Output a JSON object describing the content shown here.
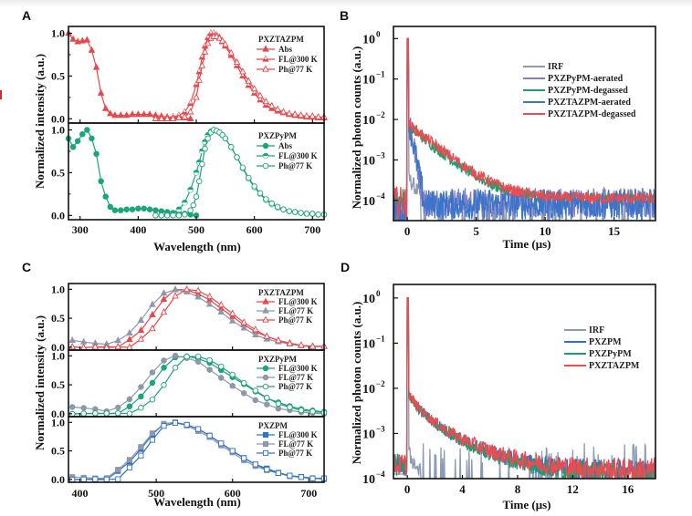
{
  "figure": {
    "panel_labels": [
      "A",
      "B",
      "C",
      "D"
    ]
  },
  "chart_data": [
    {
      "panel": "A",
      "type": "line",
      "xlabel": "Wavelength (nm)",
      "ylabel": "Normalized intensity (a.u.)",
      "xlim": [
        280,
        720
      ],
      "xticks": [
        300,
        400,
        500,
        600,
        700
      ],
      "subplots": [
        {
          "title": "PXZTAZPM",
          "ylim": [
            -0.05,
            1.08
          ],
          "yticks": [
            "0.0",
            "0.5",
            "1.0"
          ],
          "color": "#e8474b",
          "series": [
            {
              "name": "Abs",
              "marker": "triangle-filled",
              "x": [
                280,
                288,
                296,
                304,
                312,
                320,
                328,
                336,
                344,
                352,
                360,
                370,
                380,
                390,
                400,
                410,
                420,
                430,
                440,
                450,
                460,
                470,
                480,
                490
              ],
              "y": [
                1.0,
                0.93,
                0.9,
                0.91,
                0.92,
                0.8,
                0.6,
                0.3,
                0.12,
                0.06,
                0.04,
                0.04,
                0.04,
                0.05,
                0.05,
                0.05,
                0.05,
                0.04,
                0.03,
                0.02,
                0.02,
                0.02,
                0.01,
                0.0
              ]
            },
            {
              "name": "FL@300 K",
              "marker": "triangle-half",
              "x": [
                430,
                440,
                450,
                460,
                470,
                480,
                490,
                500,
                505,
                510,
                515,
                520,
                525,
                530,
                535,
                540,
                545,
                550,
                560,
                570,
                580,
                590,
                600,
                610,
                620,
                630,
                640,
                650,
                660,
                670,
                680,
                690,
                700,
                710,
                720
              ],
              "y": [
                0.0,
                0.0,
                0.01,
                0.02,
                0.04,
                0.08,
                0.18,
                0.4,
                0.55,
                0.72,
                0.85,
                0.95,
                1.0,
                1.0,
                0.98,
                0.95,
                0.9,
                0.85,
                0.74,
                0.62,
                0.5,
                0.39,
                0.3,
                0.22,
                0.16,
                0.12,
                0.09,
                0.07,
                0.05,
                0.04,
                0.03,
                0.02,
                0.02,
                0.01,
                0.01
              ]
            },
            {
              "name": "Ph@77 K",
              "marker": "triangle-open",
              "x": [
                430,
                440,
                450,
                460,
                470,
                480,
                490,
                500,
                505,
                510,
                515,
                520,
                525,
                530,
                535,
                540,
                545,
                550,
                560,
                570,
                580,
                590,
                600,
                610,
                620,
                630,
                640,
                650,
                660,
                670,
                680,
                690,
                700,
                710,
                720
              ],
              "y": [
                0.0,
                0.0,
                0.0,
                0.0,
                0.01,
                0.02,
                0.08,
                0.25,
                0.45,
                0.62,
                0.78,
                0.88,
                0.94,
                0.96,
                0.96,
                0.94,
                0.91,
                0.87,
                0.77,
                0.66,
                0.55,
                0.44,
                0.35,
                0.27,
                0.2,
                0.15,
                0.11,
                0.08,
                0.06,
                0.05,
                0.04,
                0.03,
                0.03,
                0.02,
                0.02
              ]
            }
          ]
        },
        {
          "title": "PXZPyPM",
          "ylim": [
            -0.05,
            1.08
          ],
          "yticks": [
            "0.0",
            "0.5",
            "1.0"
          ],
          "color": "#1aa57a",
          "series": [
            {
              "name": "Abs",
              "marker": "circle-filled",
              "x": [
                280,
                288,
                296,
                304,
                312,
                320,
                328,
                336,
                344,
                352,
                360,
                370,
                380,
                390,
                400,
                410,
                420,
                430,
                440,
                450,
                460,
                470,
                480,
                490,
                500
              ],
              "y": [
                0.9,
                0.8,
                0.87,
                0.95,
                1.0,
                0.9,
                0.72,
                0.4,
                0.22,
                0.1,
                0.06,
                0.06,
                0.07,
                0.07,
                0.08,
                0.08,
                0.07,
                0.06,
                0.05,
                0.04,
                0.03,
                0.03,
                0.02,
                0.01,
                0.0
              ]
            },
            {
              "name": "FL@300 K",
              "marker": "circle-half",
              "x": [
                430,
                440,
                450,
                460,
                470,
                480,
                490,
                500,
                505,
                510,
                515,
                520,
                525,
                530,
                535,
                540,
                545,
                550,
                560,
                570,
                580,
                590,
                600,
                610,
                620,
                630,
                640,
                650,
                660,
                670,
                680,
                690,
                700,
                710,
                720
              ],
              "y": [
                0.0,
                0.0,
                0.01,
                0.03,
                0.07,
                0.15,
                0.3,
                0.5,
                0.62,
                0.75,
                0.86,
                0.94,
                0.98,
                1.0,
                0.99,
                0.97,
                0.94,
                0.9,
                0.8,
                0.68,
                0.55,
                0.43,
                0.33,
                0.25,
                0.18,
                0.13,
                0.09,
                0.07,
                0.05,
                0.04,
                0.03,
                0.02,
                0.02,
                0.01,
                0.01
              ]
            },
            {
              "name": "Ph@77 K",
              "marker": "circle-open",
              "x": [
                430,
                440,
                450,
                460,
                470,
                480,
                490,
                495,
                500,
                505,
                510,
                515,
                520,
                525,
                530,
                535,
                540,
                545,
                550,
                560,
                570,
                580,
                590,
                600,
                610,
                620,
                630,
                640,
                650,
                660,
                670,
                680,
                690,
                700,
                710,
                720
              ],
              "y": [
                0.0,
                0.0,
                0.0,
                0.0,
                0.0,
                0.01,
                0.06,
                0.12,
                0.22,
                0.4,
                0.6,
                0.78,
                0.9,
                0.97,
                1.0,
                0.99,
                0.97,
                0.94,
                0.9,
                0.8,
                0.68,
                0.56,
                0.44,
                0.34,
                0.26,
                0.19,
                0.14,
                0.1,
                0.07,
                0.05,
                0.04,
                0.03,
                0.02,
                0.02,
                0.01,
                0.01
              ]
            }
          ]
        }
      ]
    },
    {
      "panel": "B",
      "type": "line",
      "scale": "log",
      "xlabel": "Time (μs)",
      "ylabel": "Normalized photon counts (a.u.)",
      "xlim": [
        -1,
        18
      ],
      "xticks": [
        0,
        5,
        10,
        15
      ],
      "ylim_exp": [
        -4.5,
        0.3
      ],
      "yticks": [
        {
          "base": "10",
          "exp": "0"
        },
        {
          "base": "10",
          "exp": "−1"
        },
        {
          "base": "10",
          "exp": "−2"
        },
        {
          "base": "10",
          "exp": "−3"
        },
        {
          "base": "10",
          "exp": "−4"
        }
      ],
      "series": [
        {
          "name": "IRF",
          "color": "#8b9bb4",
          "kind": "irf",
          "noise_floor_exp": -4.5
        },
        {
          "name": "PXZPyPM-aerated",
          "color": "#7f7fc9",
          "kind": "fast",
          "tau_us": 0.3,
          "floor_exp": -4.05
        },
        {
          "name": "PXZPyPM-degassed",
          "color": "#1a9e6e",
          "kind": "slow",
          "start_exp": -2.15,
          "tau_us": 1.55,
          "floor_exp": -3.95
        },
        {
          "name": "PXZTAZPM-aerated",
          "color": "#3b74c9",
          "kind": "fast",
          "tau_us": 0.3,
          "floor_exp": -4.1
        },
        {
          "name": "PXZTAZPM-degassed",
          "color": "#ef4a50",
          "kind": "slow",
          "start_exp": -2.1,
          "tau_us": 1.6,
          "floor_exp": -3.95
        }
      ]
    },
    {
      "panel": "C",
      "type": "line",
      "xlabel": "Wavelength (nm)",
      "ylabel": "Normalized intensity (a.u.)",
      "xlim": [
        385,
        720
      ],
      "xticks": [
        400,
        500,
        600,
        700
      ],
      "subplots": [
        {
          "title": "PXZTAZPM",
          "ylim": [
            -0.05,
            1.1
          ],
          "yticks": [
            "0.0",
            "0.5",
            "1.0"
          ],
          "series": [
            {
              "name": "FL@300 K",
              "color": "#e8474b",
              "marker": "triangle-filled",
              "peak": 530,
              "width_l": 32,
              "width_r": 62,
              "base": 0.0
            },
            {
              "name": "FL@77 K",
              "color": "#8d98aa",
              "marker": "triangle-filled",
              "peak": 522,
              "width_l": 34,
              "width_r": 62,
              "base": 0.12
            },
            {
              "name": "Ph@77 K",
              "color": "#e8474b",
              "marker": "triangle-open",
              "peak": 540,
              "width_l": 30,
              "width_r": 58,
              "base": 0.0
            }
          ]
        },
        {
          "title": "PXZPyPM",
          "ylim": [
            -0.05,
            1.1
          ],
          "yticks": [
            "0.0",
            "0.5",
            "1.0"
          ],
          "series": [
            {
              "name": "FL@300 K",
              "color": "#1aa57a",
              "marker": "circle-filled",
              "peak": 533,
              "width_l": 34,
              "width_r": 70,
              "base": 0.0
            },
            {
              "name": "FL@77 K",
              "color": "#8d98aa",
              "marker": "circle-filled",
              "peak": 525,
              "width_l": 36,
              "width_r": 62,
              "base": 0.12
            },
            {
              "name": "Ph@77 K",
              "color": "#1aa57a",
              "marker": "circle-open",
              "peak": 545,
              "width_l": 30,
              "width_r": 62,
              "base": 0.0
            }
          ]
        },
        {
          "title": "PXZPM",
          "ylim": [
            -0.05,
            1.1
          ],
          "yticks": [
            "0.0",
            "0.5",
            "1.0"
          ],
          "series": [
            {
              "name": "FL@300 K",
              "color": "#2e73c8",
              "marker": "square-filled",
              "peak": 520,
              "width_l": 36,
              "width_r": 68,
              "base": 0.0
            },
            {
              "name": "FL@77 K",
              "color": "#8d98aa",
              "marker": "square-filled",
              "peak": 518,
              "width_l": 36,
              "width_r": 66,
              "base": 0.05
            },
            {
              "name": "Ph@77 K",
              "color": "#2e73c8",
              "marker": "square-open",
              "peak": 522,
              "width_l": 32,
              "width_r": 66,
              "base": 0.0
            }
          ]
        }
      ]
    },
    {
      "panel": "D",
      "type": "line",
      "scale": "log",
      "xlabel": "Time (μs)",
      "ylabel": "Normalized photon counts (a.u.)",
      "xlim": [
        -1,
        18
      ],
      "xticks": [
        0,
        4,
        8,
        12,
        16
      ],
      "ylim_exp": [
        -4,
        0.3
      ],
      "yticks": [
        {
          "base": "10",
          "exp": "0"
        },
        {
          "base": "10",
          "exp": "−1"
        },
        {
          "base": "10",
          "exp": "−2"
        },
        {
          "base": "10",
          "exp": "−3"
        },
        {
          "base": "10",
          "exp": "−4"
        }
      ],
      "series": [
        {
          "name": "IRF",
          "color": "#8b9bb4",
          "kind": "irf"
        },
        {
          "name": "PXZPM",
          "color": "#2e73c8",
          "kind": "slow2",
          "start_exp": -2.0,
          "floor_exp": -3.6
        },
        {
          "name": "PXZPyPM",
          "color": "#1a9e6e",
          "kind": "slow2",
          "start_exp": -2.0,
          "floor_exp": -3.65
        },
        {
          "name": "PXZTAZPM",
          "color": "#ef4a50",
          "kind": "slow2",
          "start_exp": -1.98,
          "floor_exp": -3.55
        }
      ]
    }
  ]
}
